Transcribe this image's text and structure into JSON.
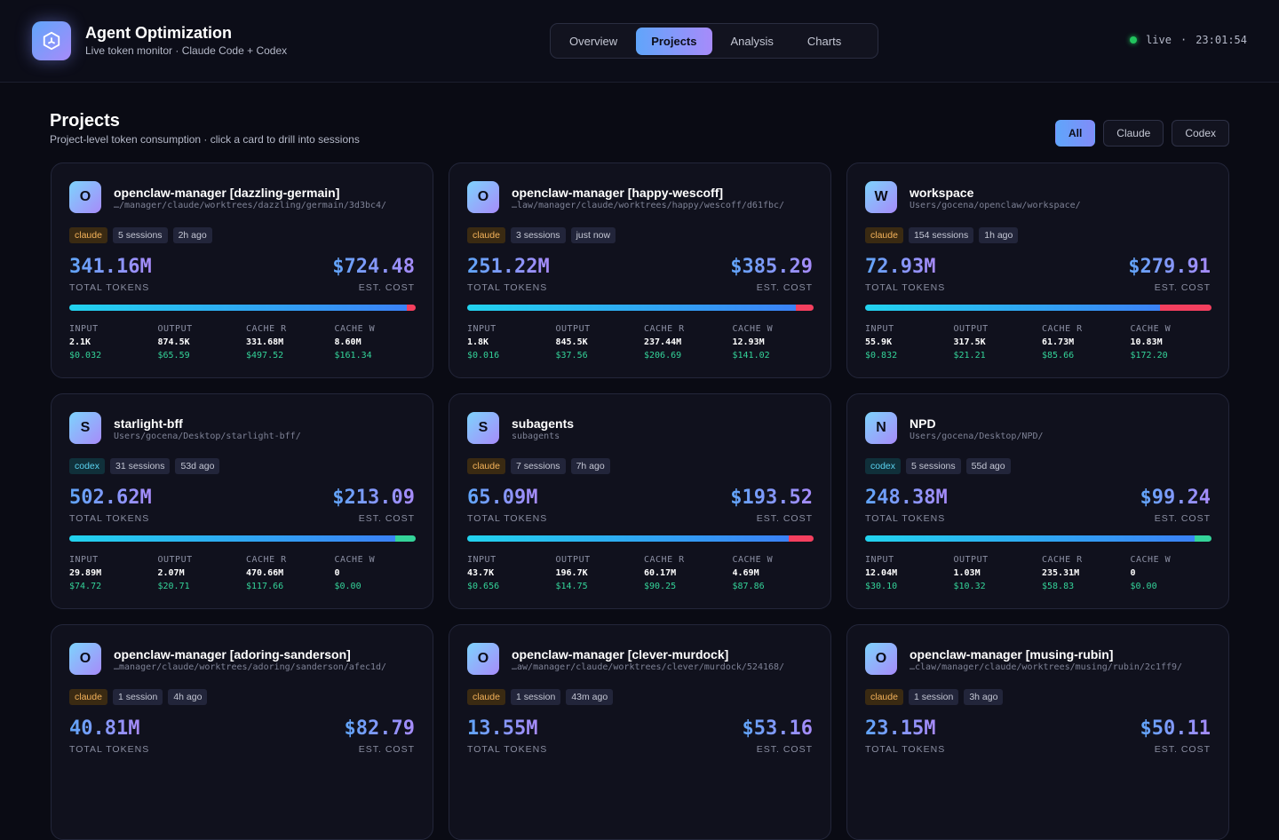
{
  "header": {
    "title": "Agent Optimization",
    "subtitle": "Live token monitor · Claude Code + Codex",
    "nav": [
      "Overview",
      "Projects",
      "Analysis",
      "Charts"
    ],
    "active_nav": 1,
    "status": "live",
    "separator": "·",
    "time": "23:01:54"
  },
  "page": {
    "title": "Projects",
    "subtitle": "Project-level token consumption · click a card to drill into sessions",
    "filters": [
      "All",
      "Claude",
      "Codex"
    ],
    "active_filter": 0
  },
  "labels": {
    "total_tokens": "TOTAL TOKENS",
    "est_cost": "EST. COST",
    "breakdown": [
      "INPUT",
      "OUTPUT",
      "CACHE R",
      "CACHE W"
    ]
  },
  "projects": [
    {
      "avatar": "O",
      "name": "openclaw-manager [dazzling-germain]",
      "path": "…/manager/claude/worktrees/dazzling/germain/3d3bc4/",
      "source": "claude",
      "sessions": "5 sessions",
      "age": "2h ago",
      "total_tokens": "341.16M",
      "cost": "$724.48",
      "breakdown": [
        {
          "tokens": "2.1K",
          "cost": "$0.032"
        },
        {
          "tokens": "874.5K",
          "cost": "$65.59"
        },
        {
          "tokens": "331.68M",
          "cost": "$497.52"
        },
        {
          "tokens": "8.60M",
          "cost": "$161.34"
        }
      ]
    },
    {
      "avatar": "O",
      "name": "openclaw-manager [happy-wescoff]",
      "path": "…law/manager/claude/worktrees/happy/wescoff/d61fbc/",
      "source": "claude",
      "sessions": "3 sessions",
      "age": "just now",
      "total_tokens": "251.22M",
      "cost": "$385.29",
      "breakdown": [
        {
          "tokens": "1.8K",
          "cost": "$0.016"
        },
        {
          "tokens": "845.5K",
          "cost": "$37.56"
        },
        {
          "tokens": "237.44M",
          "cost": "$206.69"
        },
        {
          "tokens": "12.93M",
          "cost": "$141.02"
        }
      ]
    },
    {
      "avatar": "W",
      "name": "workspace",
      "path": "Users/gocena/openclaw/workspace/",
      "source": "claude",
      "sessions": "154 sessions",
      "age": "1h ago",
      "total_tokens": "72.93M",
      "cost": "$279.91",
      "breakdown": [
        {
          "tokens": "55.9K",
          "cost": "$0.832"
        },
        {
          "tokens": "317.5K",
          "cost": "$21.21"
        },
        {
          "tokens": "61.73M",
          "cost": "$85.66"
        },
        {
          "tokens": "10.83M",
          "cost": "$172.20"
        }
      ]
    },
    {
      "avatar": "S",
      "name": "starlight-bff",
      "path": "Users/gocena/Desktop/starlight-bff/",
      "source": "codex",
      "sessions": "31 sessions",
      "age": "53d ago",
      "total_tokens": "502.62M",
      "cost": "$213.09",
      "breakdown": [
        {
          "tokens": "29.89M",
          "cost": "$74.72"
        },
        {
          "tokens": "2.07M",
          "cost": "$20.71"
        },
        {
          "tokens": "470.66M",
          "cost": "$117.66"
        },
        {
          "tokens": "0",
          "cost": "$0.00"
        }
      ]
    },
    {
      "avatar": "S",
      "name": "subagents",
      "path": "subagents",
      "source": "claude",
      "sessions": "7 sessions",
      "age": "7h ago",
      "total_tokens": "65.09M",
      "cost": "$193.52",
      "breakdown": [
        {
          "tokens": "43.7K",
          "cost": "$0.656"
        },
        {
          "tokens": "196.7K",
          "cost": "$14.75"
        },
        {
          "tokens": "60.17M",
          "cost": "$90.25"
        },
        {
          "tokens": "4.69M",
          "cost": "$87.86"
        }
      ]
    },
    {
      "avatar": "N",
      "name": "NPD",
      "path": "Users/gocena/Desktop/NPD/",
      "source": "codex",
      "sessions": "5 sessions",
      "age": "55d ago",
      "total_tokens": "248.38M",
      "cost": "$99.24",
      "breakdown": [
        {
          "tokens": "12.04M",
          "cost": "$30.10"
        },
        {
          "tokens": "1.03M",
          "cost": "$10.32"
        },
        {
          "tokens": "235.31M",
          "cost": "$58.83"
        },
        {
          "tokens": "0",
          "cost": "$0.00"
        }
      ]
    },
    {
      "avatar": "O",
      "name": "openclaw-manager [adoring-sanderson]",
      "path": "…manager/claude/worktrees/adoring/sanderson/afec1d/",
      "source": "claude",
      "sessions": "1 session",
      "age": "4h ago",
      "total_tokens": "40.81M",
      "cost": "$82.79"
    },
    {
      "avatar": "O",
      "name": "openclaw-manager [clever-murdock]",
      "path": "…aw/manager/claude/worktrees/clever/murdock/524168/",
      "source": "claude",
      "sessions": "1 session",
      "age": "43m ago",
      "total_tokens": "13.55M",
      "cost": "$53.16"
    },
    {
      "avatar": "O",
      "name": "openclaw-manager [musing-rubin]",
      "path": "…claw/manager/claude/worktrees/musing/rubin/2c1ff9/",
      "source": "claude",
      "sessions": "1 session",
      "age": "3h ago",
      "total_tokens": "23.15M",
      "cost": "$50.11"
    }
  ]
}
